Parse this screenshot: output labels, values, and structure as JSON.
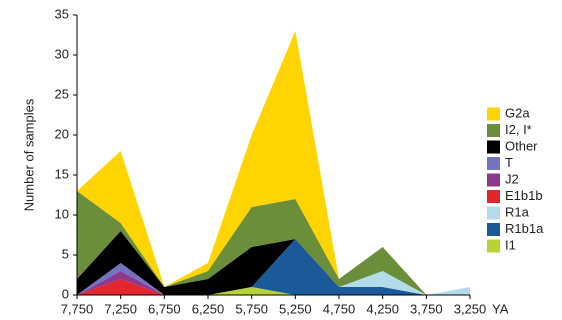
{
  "chart_data": {
    "type": "area",
    "stacked": true,
    "y_label": "Number of samples",
    "x_unit": "YA",
    "x": [
      7750,
      7250,
      6750,
      6250,
      5750,
      5250,
      4750,
      4250,
      3750,
      3250
    ],
    "xlim": [
      7750,
      3250
    ],
    "xticks": [
      {
        "value": 7750,
        "label": "7,750"
      },
      {
        "value": 7250,
        "label": "7,250"
      },
      {
        "value": 6750,
        "label": "6,750"
      },
      {
        "value": 6250,
        "label": "6,250"
      },
      {
        "value": 5750,
        "label": "5,750"
      },
      {
        "value": 5250,
        "label": "5,250"
      },
      {
        "value": 4750,
        "label": "4,750"
      },
      {
        "value": 4250,
        "label": "4,250"
      },
      {
        "value": 3750,
        "label": "3,750"
      },
      {
        "value": 3250,
        "label": "3,250"
      }
    ],
    "ylim": [
      0,
      35
    ],
    "yticks": [
      0,
      5,
      10,
      15,
      20,
      25,
      30,
      35
    ],
    "series": [
      {
        "name": "I1",
        "color": "#b5d335",
        "values": [
          0,
          0,
          0,
          0,
          1,
          0,
          0,
          0,
          0,
          0
        ]
      },
      {
        "name": "R1b1a",
        "color": "#1b5a98",
        "values": [
          0,
          0,
          0,
          0,
          0,
          7,
          1,
          1,
          0,
          0
        ]
      },
      {
        "name": "R1a",
        "color": "#b4dce8",
        "values": [
          0,
          0,
          0,
          0,
          0,
          0,
          0,
          2,
          0,
          1
        ]
      },
      {
        "name": "E1b1b",
        "color": "#e3262e",
        "values": [
          0,
          2,
          0,
          0,
          0,
          0,
          0,
          0,
          0,
          0
        ]
      },
      {
        "name": "J2",
        "color": "#8c3b8c",
        "values": [
          0,
          1,
          0,
          0,
          0,
          0,
          0,
          0,
          0,
          0
        ]
      },
      {
        "name": "T",
        "color": "#7373c2",
        "values": [
          0,
          1,
          0,
          0,
          0,
          0,
          0,
          0,
          0,
          0
        ]
      },
      {
        "name": "Other",
        "color": "#000000",
        "values": [
          2,
          4,
          1,
          2,
          5,
          0,
          0,
          0,
          0,
          0
        ]
      },
      {
        "name": "I2, I*",
        "color": "#6a8e3a",
        "values": [
          11,
          1,
          0,
          1,
          5,
          5,
          1,
          3,
          0,
          0
        ]
      },
      {
        "name": "G2a",
        "color": "#ffd400",
        "values": [
          0,
          9,
          0,
          1,
          9,
          21,
          0,
          0,
          0,
          0
        ]
      }
    ],
    "legend": "right"
  }
}
